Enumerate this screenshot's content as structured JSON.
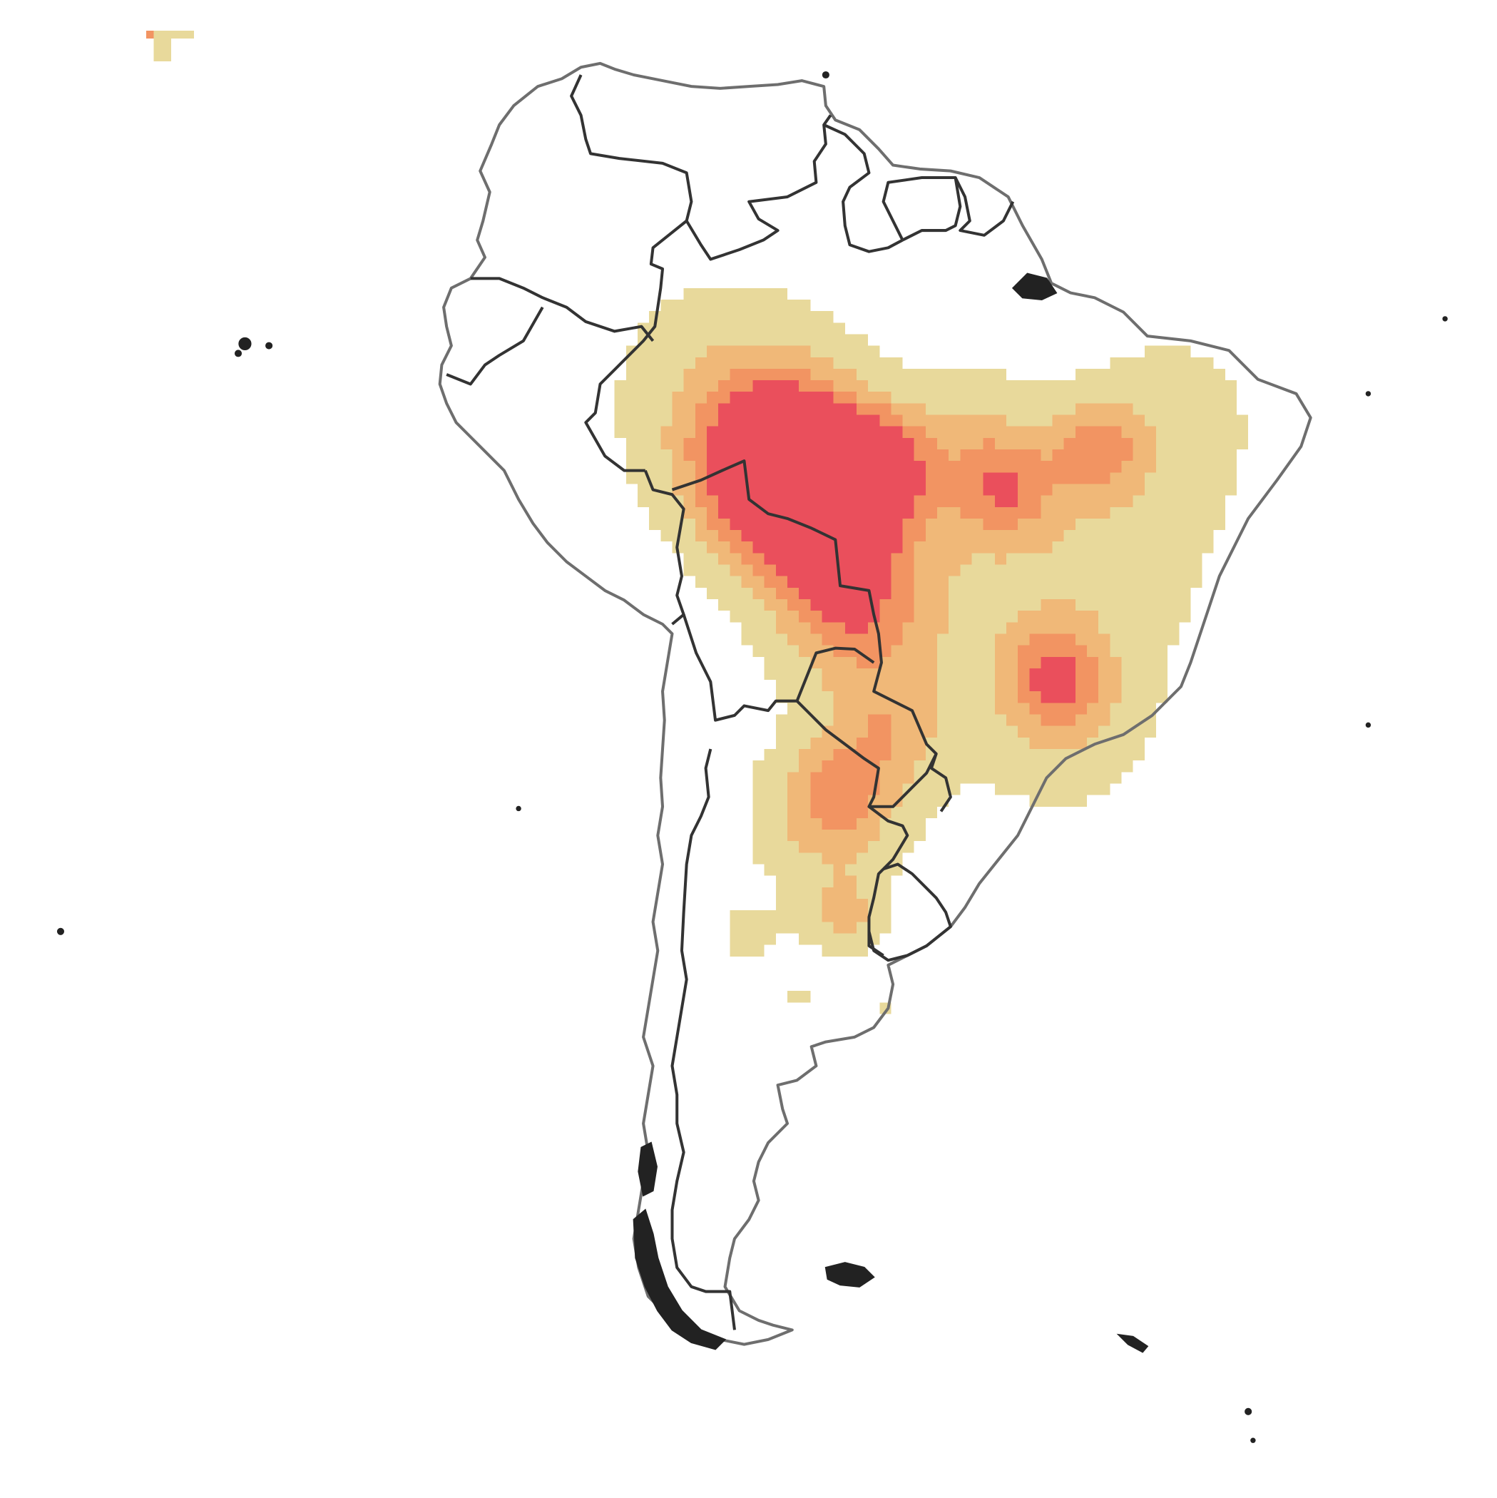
{
  "map": {
    "region": "South America",
    "legend": null,
    "colors": {
      "background": "#ffffff",
      "low": "#e8d99b",
      "medium": "#f0b878",
      "high": "#f29462",
      "very_high": "#ea4f5c",
      "coastline": "#6e6e6e",
      "border": "#333333"
    },
    "heat_levels": [
      "low",
      "medium",
      "high",
      "very_high"
    ]
  }
}
